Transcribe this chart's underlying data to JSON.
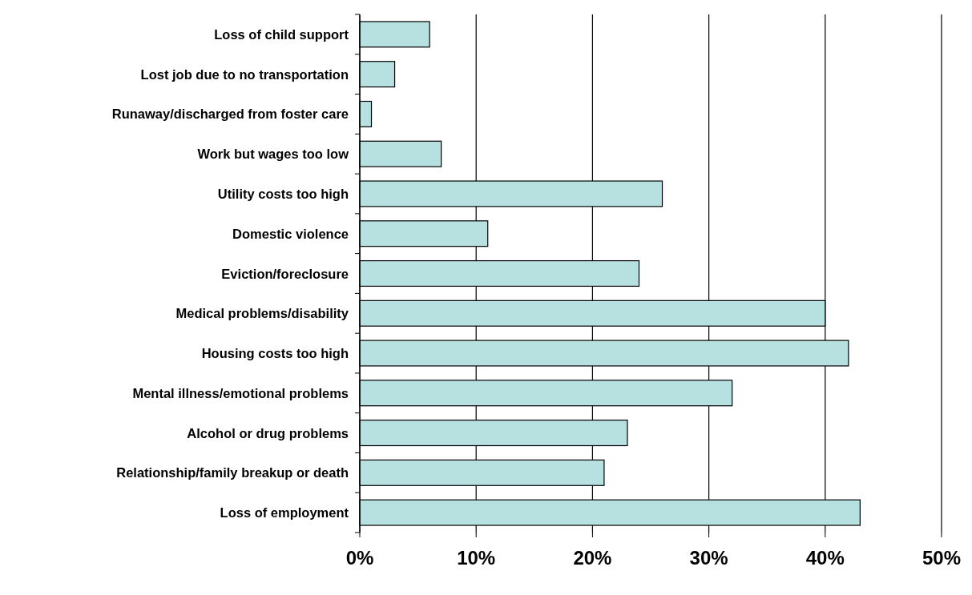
{
  "chart_data": {
    "type": "bar",
    "orientation": "horizontal",
    "categories": [
      "Loss of child support",
      "Lost job due to no transportation",
      "Runaway/discharged from foster care",
      "Work but wages too low",
      "Utility costs too high",
      "Domestic violence",
      "Eviction/foreclosure",
      "Medical problems/disability",
      "Housing costs too high",
      "Mental illness/emotional problems",
      "Alcohol or drug problems",
      "Relationship/family breakup or death",
      "Loss of employment"
    ],
    "values": [
      6,
      3,
      1,
      7,
      26,
      11,
      24,
      40,
      42,
      32,
      23,
      21,
      43
    ],
    "color": "#b7e0e0",
    "xlim": [
      0,
      50
    ],
    "xticks": [
      {
        "value": 0,
        "label": "0%"
      },
      {
        "value": 10,
        "label": "10%"
      },
      {
        "value": 20,
        "label": "20%"
      },
      {
        "value": 30,
        "label": "30%"
      },
      {
        "value": 40,
        "label": "40%"
      },
      {
        "value": 50,
        "label": "50%"
      }
    ],
    "grid": "x"
  }
}
